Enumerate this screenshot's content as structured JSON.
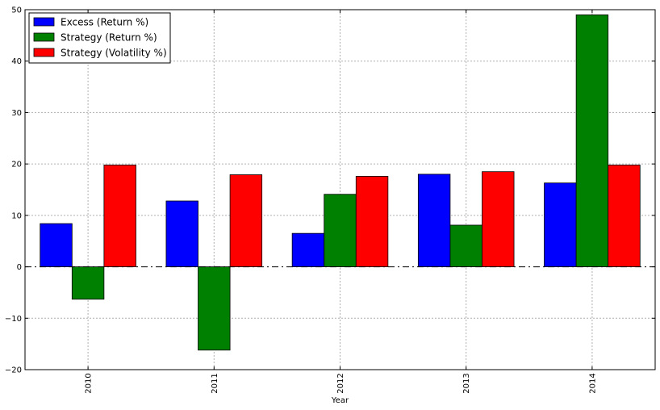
{
  "chart_data": {
    "type": "bar",
    "title": "",
    "xlabel": "Year",
    "ylabel": "",
    "categories": [
      "2010",
      "2011",
      "2012",
      "2013",
      "2014"
    ],
    "series": [
      {
        "name": "Excess (Return %)",
        "color": "#0000ff",
        "values": [
          8.4,
          12.8,
          6.5,
          18.0,
          16.3
        ]
      },
      {
        "name": "Strategy (Return %)",
        "color": "#008000",
        "values": [
          -6.3,
          -16.2,
          14.1,
          8.1,
          49.0
        ]
      },
      {
        "name": "Strategy (Volatility %)",
        "color": "#ff0000",
        "values": [
          19.8,
          17.9,
          17.6,
          18.5,
          19.8
        ]
      }
    ],
    "ylim": [
      -20,
      50
    ],
    "yticks": [
      -20,
      -10,
      0,
      10,
      20,
      30,
      40,
      50
    ],
    "ytick_labels": [
      "−20",
      "−10",
      "0",
      "10",
      "20",
      "30",
      "40",
      "50"
    ],
    "grid": true,
    "zero_line": "dash-dot",
    "legend_position": "top-left"
  }
}
